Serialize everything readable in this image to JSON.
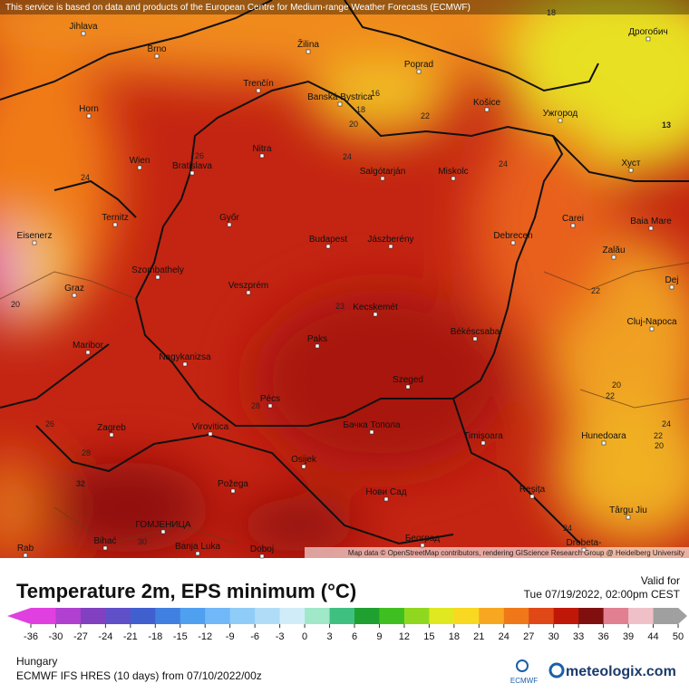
{
  "attribution_top": "This service is based on data and products of the European Centre for Medium-range Weather Forecasts (ECMWF)",
  "attribution_map": "Map data © OpenStreetMap contributors, rendering GIScience Research Group @ Heidelberg University",
  "cities": [
    "Jihlava",
    "Brno",
    "Žilina",
    "Poprad",
    "Дрогобич",
    "Horn",
    "Trenčín",
    "Banská Bystrica",
    "Košice",
    "Ужгород",
    "Wien",
    "Bratislava",
    "Nitra",
    "Salgótarján",
    "Miskolc",
    "Хуст",
    "Ternitz",
    "Győr",
    "Carei",
    "Baia Mare",
    "Eisenerz",
    "Budapest",
    "Jászberény",
    "Debrecen",
    "Szombathely",
    "Zalău",
    "Graz",
    "Veszprém",
    "Dej",
    "Kecskemét",
    "Cluj-Napoca",
    "Paks",
    "Békéscsaba",
    "Maribor",
    "Nagykanizsa",
    "Szeged",
    "Pécs",
    "Zagreb",
    "Virovitica",
    "Бачка Топола",
    "Timișoara",
    "Hunedoara",
    "Osijek",
    "Požega",
    "Нови Сад",
    "Reșița",
    "Târgu Jiu",
    "ГОМЈЕНИЦА",
    "Bihać",
    "Banja Luka",
    "Doboj",
    "Београд",
    "Drobeta-",
    "Rab"
  ],
  "contour_labels": [
    18,
    16,
    18,
    20,
    22,
    24,
    24,
    24,
    26,
    13,
    22,
    20,
    23,
    20,
    22,
    24,
    22,
    20,
    26,
    28,
    28,
    32,
    24,
    30
  ],
  "title": "Temperature 2m, EPS minimum (°C)",
  "valid_label": "Valid for",
  "valid_time": "Tue 07/19/2022, 02:00pm CEST",
  "colorbar": {
    "ticks": [
      -36,
      -30,
      -27,
      -24,
      -21,
      -18,
      -15,
      -12,
      -9,
      -6,
      -3,
      0,
      3,
      6,
      9,
      12,
      15,
      18,
      21,
      24,
      27,
      30,
      33,
      36,
      39,
      44,
      50
    ],
    "colors": [
      "#e040e0",
      "#b040d0",
      "#8040c0",
      "#6050c8",
      "#4060d0",
      "#4080e0",
      "#50a0f0",
      "#70b8f8",
      "#90ccf8",
      "#b0dcf8",
      "#d0ecf8",
      "#a0e8c8",
      "#40c080",
      "#20a030",
      "#40c020",
      "#90d820",
      "#e0e820",
      "#f8d820",
      "#f8a820",
      "#f07818",
      "#e04818",
      "#c01808",
      "#801010",
      "#e08090",
      "#f0c0c8",
      "#a0a0a0"
    ]
  },
  "region": "Hungary",
  "model": "ECMWF IFS HRES (10 days) from 07/10/2022/00z",
  "logo_ecmwf": "ECMWF",
  "logo_meteologix": "meteologix.com"
}
